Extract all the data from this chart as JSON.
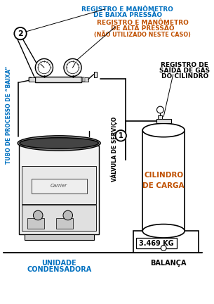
{
  "bg_color": "#ffffff",
  "line_color": "#000000",
  "blue_text_color": "#0070c0",
  "orange_text_color": "#c05000",
  "figsize": [
    3.05,
    4.32
  ],
  "dpi": 100,
  "labels": {
    "low_pressure_line1": "REGISTRO E MANÔMETRO",
    "low_pressure_line2": "DE BAIXA PRESSÃO",
    "high_pressure_line1": "REGISTRO E MANÔMETRO",
    "high_pressure_line2": "DE ALTA PRESSÃO",
    "high_pressure_line3": "(NÃO UTILIZADO NESTE CASO)",
    "tube_label": "TUBO DE PROCESSO DE “BAIXA”",
    "valve_label": "VÁLVULA DE SERVIÇO",
    "gas_register_line1": "REGISTRO DE",
    "gas_register_line2": "SAÍDA DE GÁS",
    "gas_register_line3": "DO CILINDRO",
    "cylinder_line1": "CILINDRO",
    "cylinder_line2": "DE CARGA",
    "weight_label": "3.469 KG",
    "balance_label": "BALANÇA",
    "condenser_line1": "UNIDADE",
    "condenser_line2": "CONDENSADORA",
    "num1": "1",
    "num2": "2"
  }
}
